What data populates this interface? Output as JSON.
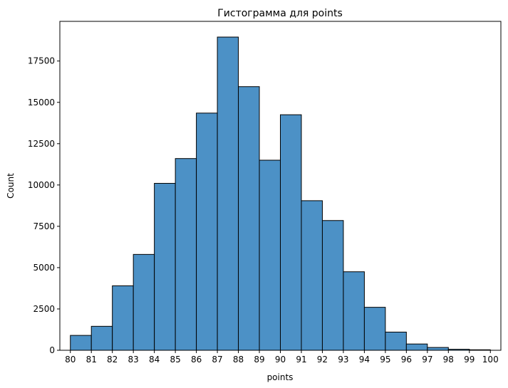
{
  "chart_data": {
    "type": "bar",
    "title": "Гистограмма для points",
    "xlabel": "points",
    "ylabel": "Count",
    "bin_edges": [
      80,
      81,
      82,
      83,
      84,
      85,
      86,
      87,
      88,
      89,
      90,
      91,
      92,
      93,
      94,
      95,
      96,
      97,
      98,
      99,
      100
    ],
    "values": [
      900,
      1450,
      3900,
      5800,
      10100,
      11600,
      14350,
      18950,
      15950,
      11500,
      14250,
      9050,
      7850,
      4750,
      2600,
      1100,
      380,
      170,
      60,
      30
    ],
    "x_ticks": [
      "80",
      "81",
      "82",
      "83",
      "84",
      "85",
      "86",
      "87",
      "88",
      "89",
      "90",
      "91",
      "92",
      "93",
      "94",
      "95",
      "96",
      "97",
      "98",
      "99",
      "100"
    ],
    "y_ticks": [
      "0",
      "2500",
      "5000",
      "7500",
      "10000",
      "12500",
      "15000",
      "17500"
    ],
    "ylim": [
      0,
      19900
    ],
    "xlim": [
      79.5,
      100.5
    ],
    "grid": false,
    "bar_color": "#4c91c6",
    "bar_edge_color": "#000000"
  }
}
